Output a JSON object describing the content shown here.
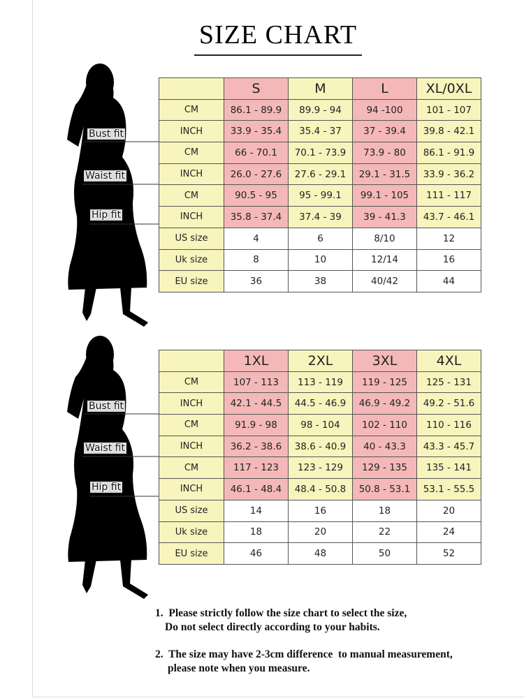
{
  "title": "SIZE CHART",
  "tables": [
    {
      "columns": [
        "S",
        "M",
        "L",
        "XL/0XL"
      ],
      "fit_labels": [
        "Bust fit",
        "Waist fit",
        "Hip fit"
      ],
      "rows": [
        {
          "label": "CM",
          "cells": [
            "86.1 - 89.9",
            "89.9 - 94",
            "94 -100",
            "101 - 107"
          ]
        },
        {
          "label": "INCH",
          "cells": [
            "33.9 - 35.4",
            "35.4 - 37",
            "37 - 39.4",
            "39.8 - 42.1"
          ]
        },
        {
          "label": "CM",
          "cells": [
            "66 - 70.1",
            "70.1 - 73.9",
            "73.9 - 80",
            "86.1 - 91.9"
          ]
        },
        {
          "label": "INCH",
          "cells": [
            "26.0 - 27.6",
            "27.6 - 29.1",
            "29.1 - 31.5",
            "33.9 - 36.2"
          ]
        },
        {
          "label": "CM",
          "cells": [
            "90.5 - 95",
            "95 - 99.1",
            "99.1 - 105",
            "111 - 117"
          ]
        },
        {
          "label": "INCH",
          "cells": [
            "35.8 - 37.4",
            "37.4 - 39",
            "39 - 41.3",
            "43.7 - 46.1"
          ]
        },
        {
          "label": "US size",
          "cells": [
            "4",
            "6",
            "8/10",
            "12"
          ]
        },
        {
          "label": "Uk size",
          "cells": [
            "8",
            "10",
            "12/14",
            "16"
          ]
        },
        {
          "label": "EU size",
          "cells": [
            "36",
            "38",
            "40/42",
            "44"
          ]
        }
      ]
    },
    {
      "columns": [
        "1XL",
        "2XL",
        "3XL",
        "4XL"
      ],
      "fit_labels": [
        "Bust fit",
        "Waist fit",
        "Hip fit"
      ],
      "rows": [
        {
          "label": "CM",
          "cells": [
            "107 - 113",
            "113 - 119",
            "119 - 125",
            "125 - 131"
          ]
        },
        {
          "label": "INCH",
          "cells": [
            "42.1 - 44.5",
            "44.5 - 46.9",
            "46.9 - 49.2",
            "49.2 - 51.6"
          ]
        },
        {
          "label": "CM",
          "cells": [
            "91.9 - 98",
            "98 - 104",
            "102 - 110",
            "110 - 116"
          ]
        },
        {
          "label": "INCH",
          "cells": [
            "36.2 - 38.6",
            "38.6 - 40.9",
            "40 - 43.3",
            "43.3 - 45.7"
          ]
        },
        {
          "label": "CM",
          "cells": [
            "117 - 123",
            "123 - 129",
            "129 - 135",
            "135 - 141"
          ]
        },
        {
          "label": "INCH",
          "cells": [
            "46.1 - 48.4",
            "48.4 - 50.8",
            "50.8 - 53.1",
            "53.1 - 55.5"
          ]
        },
        {
          "label": "US size",
          "cells": [
            "14",
            "16",
            "18",
            "20"
          ]
        },
        {
          "label": "Uk size",
          "cells": [
            "18",
            "20",
            "22",
            "24"
          ]
        },
        {
          "label": "EU size",
          "cells": [
            "46",
            "48",
            "50",
            "52"
          ]
        }
      ]
    }
  ],
  "notes": [
    {
      "lines": [
        "1.  Please strictly follow the size chart to select the size,",
        "Do not select directly according to your habits."
      ]
    },
    {
      "lines": [
        "2.  The size may have 2-3cm difference  to manual measurement,",
        "please note when you measure."
      ]
    }
  ]
}
